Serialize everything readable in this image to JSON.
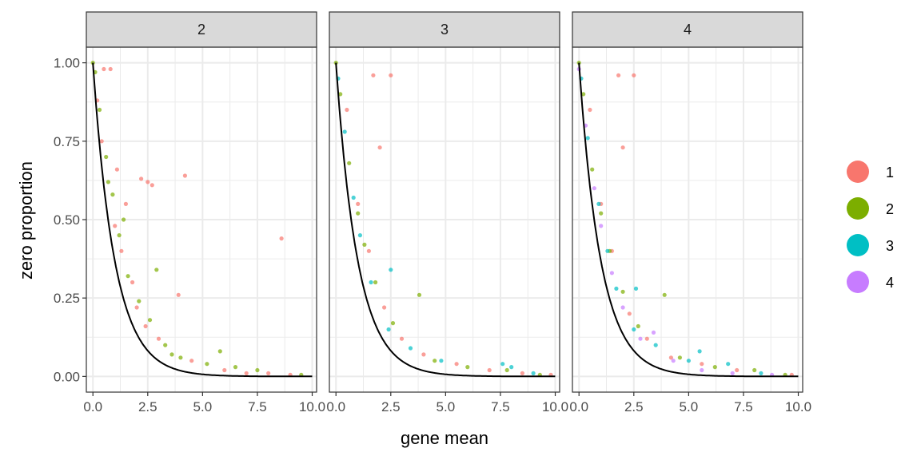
{
  "chart_data": {
    "type": "scatter",
    "xlabel": "gene mean",
    "ylabel": "zero proportion",
    "xlim": [
      -0.3,
      10.2
    ],
    "ylim": [
      -0.05,
      1.05
    ],
    "x_ticks": [
      0,
      2.5,
      5,
      7.5,
      10
    ],
    "x_tick_labels": [
      "0.0",
      "2.5",
      "5.0",
      "7.5",
      "10.0"
    ],
    "y_ticks": [
      0,
      0.25,
      0.5,
      0.75,
      1
    ],
    "y_tick_labels": [
      "0.00",
      "0.25",
      "0.50",
      "0.75",
      "1.00"
    ],
    "grid": true,
    "legend_position": "right",
    "reference_curve": "exp(-x)",
    "legend": [
      {
        "label": "1",
        "color": "#F8766D"
      },
      {
        "label": "2",
        "color": "#7CAE00"
      },
      {
        "label": "3",
        "color": "#00BFC4"
      },
      {
        "label": "4",
        "color": "#C77CFF"
      }
    ],
    "panels": [
      {
        "label": "2",
        "series": [
          {
            "name": "1",
            "color": "#F8766D",
            "points": [
              [
                0.5,
                0.98
              ],
              [
                0.8,
                0.98
              ],
              [
                1.1,
                0.66
              ],
              [
                2.2,
                0.63
              ],
              [
                2.5,
                0.62
              ],
              [
                2.7,
                0.61
              ],
              [
                3.9,
                0.26
              ],
              [
                4.2,
                0.64
              ],
              [
                8.6,
                0.44
              ],
              [
                1.5,
                0.55
              ],
              [
                1.0,
                0.48
              ],
              [
                2.0,
                0.22
              ],
              [
                3.0,
                0.12
              ],
              [
                4.5,
                0.05
              ],
              [
                6.0,
                0.02
              ],
              [
                7.0,
                0.01
              ],
              [
                8.0,
                0.01
              ],
              [
                9.0,
                0.005
              ],
              [
                0.2,
                0.88
              ],
              [
                0.4,
                0.75
              ],
              [
                1.3,
                0.4
              ],
              [
                1.8,
                0.3
              ],
              [
                2.4,
                0.16
              ]
            ]
          },
          {
            "name": "2",
            "color": "#7CAE00",
            "points": [
              [
                0.0,
                1.0
              ],
              [
                0.1,
                0.97
              ],
              [
                0.3,
                0.85
              ],
              [
                0.6,
                0.7
              ],
              [
                0.9,
                0.58
              ],
              [
                1.2,
                0.45
              ],
              [
                1.6,
                0.32
              ],
              [
                2.1,
                0.24
              ],
              [
                2.6,
                0.18
              ],
              [
                2.9,
                0.34
              ],
              [
                3.3,
                0.1
              ],
              [
                4.0,
                0.06
              ],
              [
                5.2,
                0.04
              ],
              [
                6.5,
                0.03
              ],
              [
                7.5,
                0.02
              ],
              [
                9.5,
                0.005
              ],
              [
                1.4,
                0.5
              ],
              [
                0.7,
                0.62
              ],
              [
                3.6,
                0.07
              ],
              [
                5.8,
                0.08
              ]
            ]
          }
        ]
      },
      {
        "label": "3",
        "series": [
          {
            "name": "1",
            "color": "#F8766D",
            "points": [
              [
                1.7,
                0.96
              ],
              [
                2.5,
                0.96
              ],
              [
                2.0,
                0.73
              ],
              [
                0.5,
                0.85
              ],
              [
                1.0,
                0.55
              ],
              [
                1.5,
                0.4
              ],
              [
                2.2,
                0.22
              ],
              [
                3.0,
                0.12
              ],
              [
                4.0,
                0.07
              ],
              [
                5.5,
                0.04
              ],
              [
                7.0,
                0.02
              ],
              [
                8.5,
                0.01
              ],
              [
                9.8,
                0.005
              ]
            ]
          },
          {
            "name": "2",
            "color": "#7CAE00",
            "points": [
              [
                0.0,
                1.0
              ],
              [
                0.2,
                0.9
              ],
              [
                0.6,
                0.68
              ],
              [
                1.0,
                0.52
              ],
              [
                1.3,
                0.42
              ],
              [
                1.8,
                0.3
              ],
              [
                2.6,
                0.17
              ],
              [
                3.8,
                0.26
              ],
              [
                4.5,
                0.05
              ],
              [
                6.0,
                0.03
              ],
              [
                7.8,
                0.02
              ],
              [
                9.3,
                0.005
              ]
            ]
          },
          {
            "name": "3",
            "color": "#00BFC4",
            "points": [
              [
                0.1,
                0.95
              ],
              [
                0.4,
                0.78
              ],
              [
                0.8,
                0.57
              ],
              [
                1.1,
                0.45
              ],
              [
                1.6,
                0.3
              ],
              [
                2.4,
                0.15
              ],
              [
                2.5,
                0.34
              ],
              [
                3.4,
                0.09
              ],
              [
                4.8,
                0.05
              ],
              [
                7.6,
                0.04
              ],
              [
                8.0,
                0.03
              ],
              [
                9.0,
                0.01
              ]
            ]
          }
        ]
      },
      {
        "label": "4",
        "series": [
          {
            "name": "1",
            "color": "#F8766D",
            "points": [
              [
                1.8,
                0.96
              ],
              [
                2.5,
                0.96
              ],
              [
                2.0,
                0.73
              ],
              [
                0.5,
                0.85
              ],
              [
                1.0,
                0.55
              ],
              [
                1.5,
                0.4
              ],
              [
                2.3,
                0.2
              ],
              [
                3.1,
                0.12
              ],
              [
                4.2,
                0.06
              ],
              [
                5.6,
                0.04
              ],
              [
                7.2,
                0.02
              ],
              [
                9.7,
                0.005
              ]
            ]
          },
          {
            "name": "2",
            "color": "#7CAE00",
            "points": [
              [
                0.0,
                1.0
              ],
              [
                0.2,
                0.9
              ],
              [
                0.6,
                0.66
              ],
              [
                1.0,
                0.52
              ],
              [
                1.4,
                0.4
              ],
              [
                2.0,
                0.27
              ],
              [
                2.7,
                0.16
              ],
              [
                3.9,
                0.26
              ],
              [
                4.6,
                0.06
              ],
              [
                6.2,
                0.03
              ],
              [
                8.0,
                0.02
              ],
              [
                9.4,
                0.005
              ]
            ]
          },
          {
            "name": "3",
            "color": "#00BFC4",
            "points": [
              [
                0.1,
                0.95
              ],
              [
                0.4,
                0.76
              ],
              [
                0.9,
                0.55
              ],
              [
                1.3,
                0.4
              ],
              [
                1.7,
                0.28
              ],
              [
                2.5,
                0.15
              ],
              [
                2.6,
                0.28
              ],
              [
                3.5,
                0.1
              ],
              [
                5.0,
                0.05
              ],
              [
                5.5,
                0.08
              ],
              [
                6.8,
                0.04
              ],
              [
                8.3,
                0.01
              ]
            ]
          },
          {
            "name": "4",
            "color": "#C77CFF",
            "points": [
              [
                0.0,
                0.98
              ],
              [
                0.3,
                0.8
              ],
              [
                0.7,
                0.6
              ],
              [
                1.0,
                0.48
              ],
              [
                1.5,
                0.33
              ],
              [
                2.0,
                0.22
              ],
              [
                2.8,
                0.12
              ],
              [
                3.4,
                0.14
              ],
              [
                4.3,
                0.05
              ],
              [
                5.6,
                0.02
              ],
              [
                7.0,
                0.01
              ],
              [
                8.8,
                0.005
              ]
            ]
          }
        ]
      }
    ]
  }
}
